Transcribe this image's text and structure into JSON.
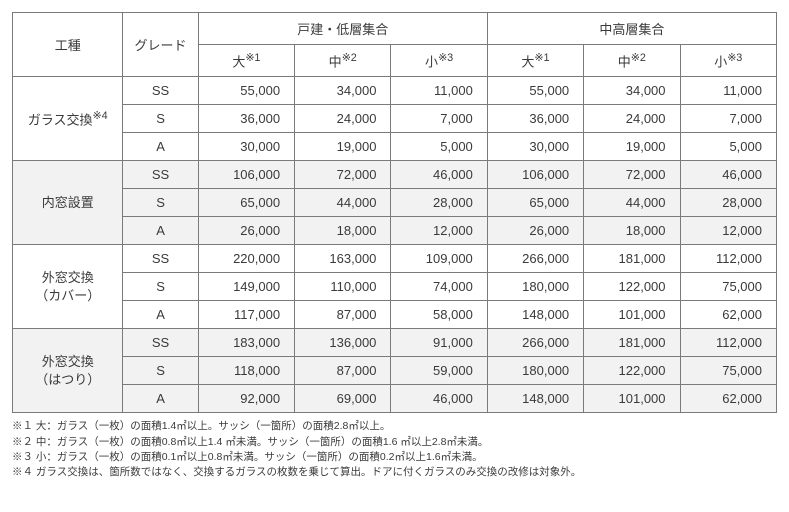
{
  "header": {
    "work_type": "工種",
    "grade": "グレード",
    "group1": "戸建・低層集合",
    "group2": "中高層集合",
    "size_large": "大",
    "size_medium": "中",
    "size_small": "小",
    "sup1": "※1",
    "sup2": "※2",
    "sup3": "※3"
  },
  "categories": [
    {
      "label": "ガラス交換",
      "sup": "※4",
      "alt": false,
      "rows": [
        {
          "grade": "SS",
          "g1": [
            "55,000",
            "34,000",
            "11,000"
          ],
          "g2": [
            "55,000",
            "34,000",
            "11,000"
          ]
        },
        {
          "grade": "S",
          "g1": [
            "36,000",
            "24,000",
            "7,000"
          ],
          "g2": [
            "36,000",
            "24,000",
            "7,000"
          ]
        },
        {
          "grade": "A",
          "g1": [
            "30,000",
            "19,000",
            "5,000"
          ],
          "g2": [
            "30,000",
            "19,000",
            "5,000"
          ]
        }
      ]
    },
    {
      "label": "内窓設置",
      "sup": "",
      "alt": true,
      "rows": [
        {
          "grade": "SS",
          "g1": [
            "106,000",
            "72,000",
            "46,000"
          ],
          "g2": [
            "106,000",
            "72,000",
            "46,000"
          ]
        },
        {
          "grade": "S",
          "g1": [
            "65,000",
            "44,000",
            "28,000"
          ],
          "g2": [
            "65,000",
            "44,000",
            "28,000"
          ]
        },
        {
          "grade": "A",
          "g1": [
            "26,000",
            "18,000",
            "12,000"
          ],
          "g2": [
            "26,000",
            "18,000",
            "12,000"
          ]
        }
      ]
    },
    {
      "label": "外窓交換\n（カバー）",
      "sup": "",
      "alt": false,
      "rows": [
        {
          "grade": "SS",
          "g1": [
            "220,000",
            "163,000",
            "109,000"
          ],
          "g2": [
            "266,000",
            "181,000",
            "112,000"
          ]
        },
        {
          "grade": "S",
          "g1": [
            "149,000",
            "110,000",
            "74,000"
          ],
          "g2": [
            "180,000",
            "122,000",
            "75,000"
          ]
        },
        {
          "grade": "A",
          "g1": [
            "117,000",
            "87,000",
            "58,000"
          ],
          "g2": [
            "148,000",
            "101,000",
            "62,000"
          ]
        }
      ]
    },
    {
      "label": "外窓交換\n（はつり）",
      "sup": "",
      "alt": true,
      "rows": [
        {
          "grade": "SS",
          "g1": [
            "183,000",
            "136,000",
            "91,000"
          ],
          "g2": [
            "266,000",
            "181,000",
            "112,000"
          ]
        },
        {
          "grade": "S",
          "g1": [
            "118,000",
            "87,000",
            "59,000"
          ],
          "g2": [
            "180,000",
            "122,000",
            "75,000"
          ]
        },
        {
          "grade": "A",
          "g1": [
            "92,000",
            "69,000",
            "46,000"
          ],
          "g2": [
            "148,000",
            "101,000",
            "62,000"
          ]
        }
      ]
    }
  ],
  "footnotes": [
    "※１ 大：ガラス（一枚）の面積1.4㎡以上。サッシ（一箇所）の面積2.8㎡以上。",
    "※２ 中：ガラス（一枚）の面積0.8㎡以上1.4 ㎡未満。サッシ（一箇所）の面積1.6 ㎡以上2.8㎡未満。",
    "※３ 小：ガラス（一枚）の面積0.1㎡以上0.8㎡未満。サッシ（一箇所）の面積0.2㎡以上1.6㎡未満。",
    "※４ ガラス交換は、箇所数ではなく、交換するガラスの枚数を乗じて算出。ドアに付くガラスのみ交換の改修は対象外。"
  ]
}
